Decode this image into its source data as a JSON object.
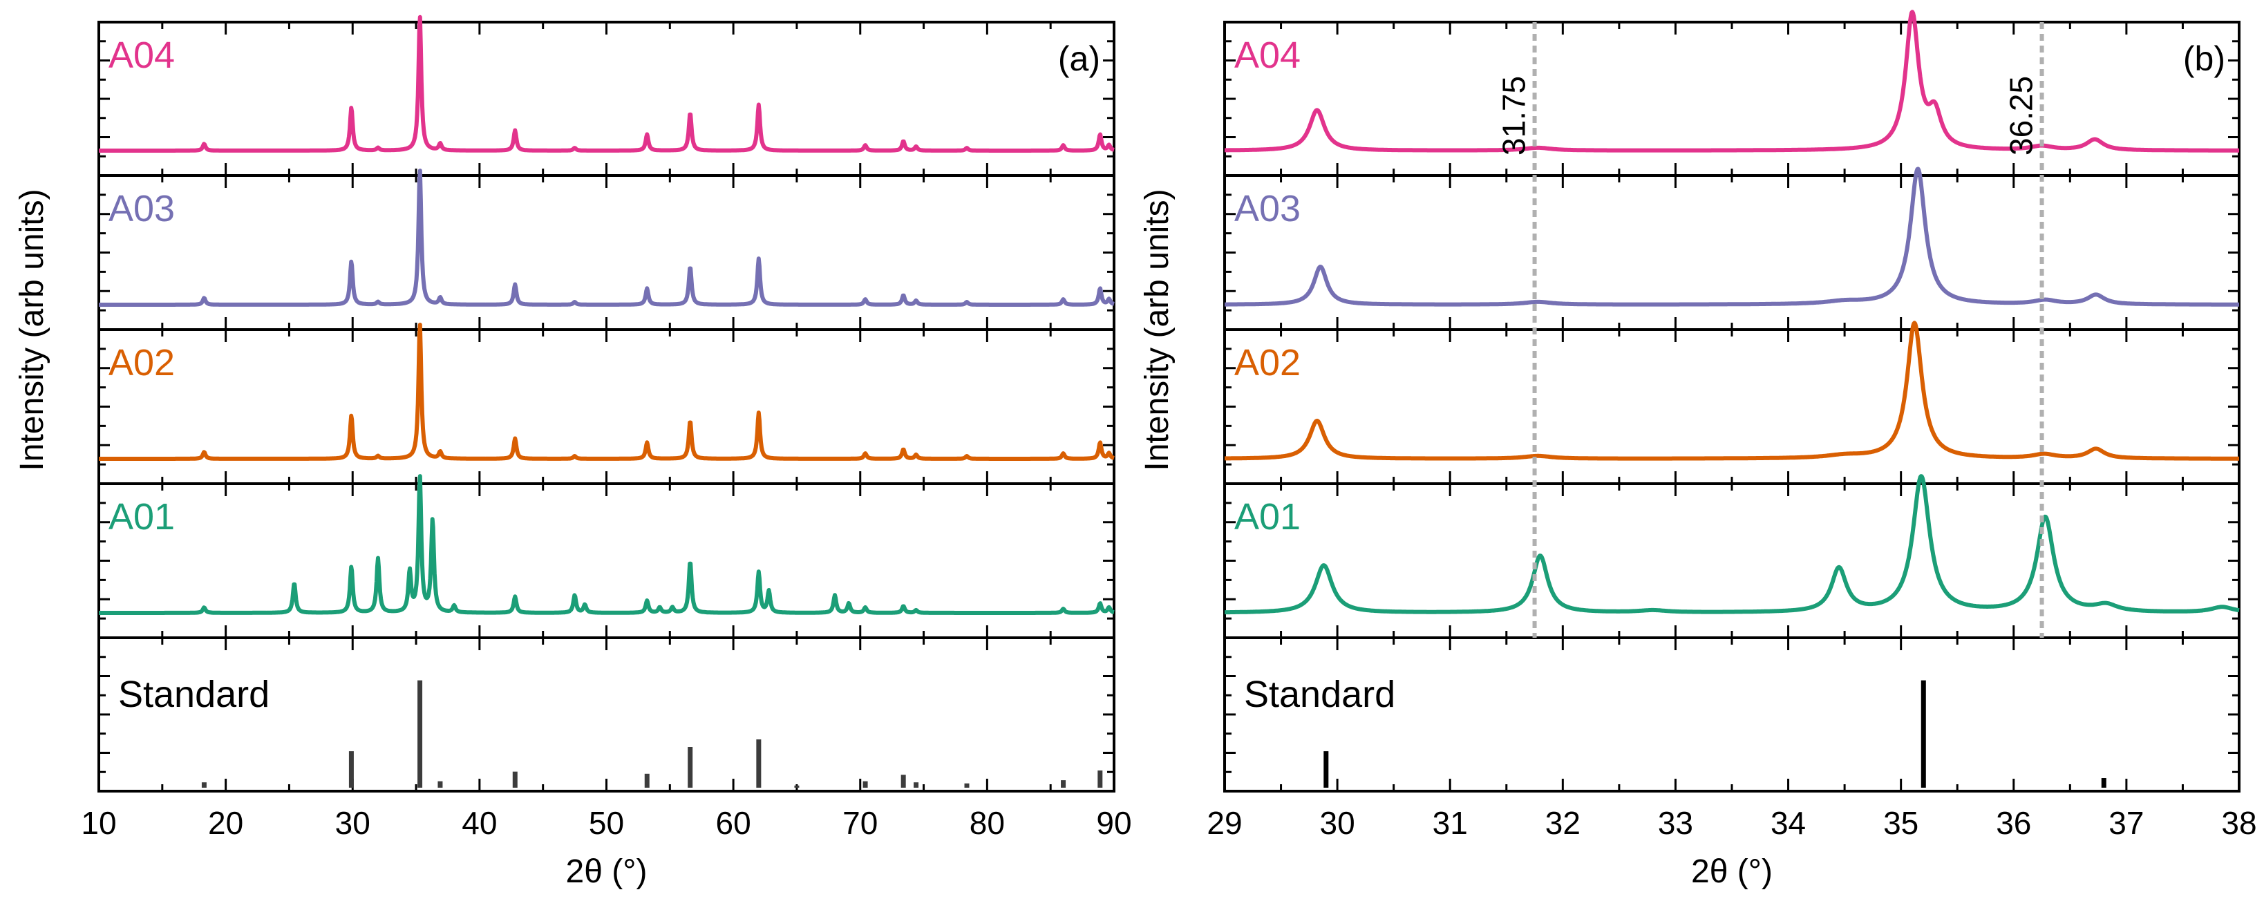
{
  "chart_data": [
    {
      "type": "line",
      "panel": "(a)",
      "xlabel": "2θ (°)",
      "ylabel": "Intensity (arb units)",
      "xlim": [
        10,
        90
      ],
      "xticks": [
        10,
        20,
        30,
        40,
        50,
        60,
        70,
        80,
        90
      ],
      "series": [
        {
          "name": "A04",
          "color": "#e2338c",
          "peaks": [
            [
              18.3,
              0.05
            ],
            [
              29.9,
              0.32
            ],
            [
              32.0,
              0.02
            ],
            [
              35.3,
              1.0
            ],
            [
              36.9,
              0.05
            ],
            [
              42.8,
              0.15
            ],
            [
              47.5,
              0.02
            ],
            [
              53.2,
              0.12
            ],
            [
              56.6,
              0.28
            ],
            [
              62.0,
              0.34
            ],
            [
              70.4,
              0.04
            ],
            [
              73.4,
              0.07
            ],
            [
              74.4,
              0.03
            ],
            [
              78.4,
              0.02
            ],
            [
              86.0,
              0.04
            ],
            [
              88.9,
              0.12
            ],
            [
              89.6,
              0.04
            ]
          ]
        },
        {
          "name": "A03",
          "color": "#7570b3",
          "peaks": [
            [
              18.3,
              0.05
            ],
            [
              29.9,
              0.32
            ],
            [
              32.0,
              0.02
            ],
            [
              35.3,
              1.0
            ],
            [
              36.9,
              0.05
            ],
            [
              42.8,
              0.15
            ],
            [
              47.5,
              0.02
            ],
            [
              53.2,
              0.12
            ],
            [
              56.6,
              0.28
            ],
            [
              62.0,
              0.34
            ],
            [
              70.4,
              0.04
            ],
            [
              73.4,
              0.07
            ],
            [
              74.4,
              0.03
            ],
            [
              78.4,
              0.02
            ],
            [
              86.0,
              0.04
            ],
            [
              88.9,
              0.12
            ],
            [
              89.6,
              0.04
            ]
          ]
        },
        {
          "name": "A02",
          "color": "#d95f02",
          "peaks": [
            [
              18.3,
              0.05
            ],
            [
              29.9,
              0.32
            ],
            [
              32.0,
              0.02
            ],
            [
              35.3,
              1.0
            ],
            [
              36.9,
              0.05
            ],
            [
              42.8,
              0.15
            ],
            [
              47.5,
              0.02
            ],
            [
              53.2,
              0.12
            ],
            [
              56.6,
              0.28
            ],
            [
              62.0,
              0.34
            ],
            [
              70.4,
              0.04
            ],
            [
              73.4,
              0.07
            ],
            [
              74.4,
              0.03
            ],
            [
              78.4,
              0.02
            ],
            [
              86.0,
              0.04
            ],
            [
              88.9,
              0.12
            ],
            [
              89.6,
              0.04
            ]
          ]
        },
        {
          "name": "A01",
          "color": "#1b9e77",
          "peaks": [
            [
              18.3,
              0.04
            ],
            [
              25.4,
              0.22
            ],
            [
              29.9,
              0.34
            ],
            [
              32.0,
              0.4
            ],
            [
              34.5,
              0.3
            ],
            [
              35.3,
              1.0
            ],
            [
              36.3,
              0.68
            ],
            [
              38.0,
              0.05
            ],
            [
              42.8,
              0.12
            ],
            [
              47.5,
              0.13
            ],
            [
              48.3,
              0.06
            ],
            [
              53.2,
              0.09
            ],
            [
              54.2,
              0.04
            ],
            [
              55.2,
              0.04
            ],
            [
              56.6,
              0.38
            ],
            [
              62.0,
              0.3
            ],
            [
              62.8,
              0.16
            ],
            [
              68.0,
              0.13
            ],
            [
              69.1,
              0.07
            ],
            [
              70.4,
              0.04
            ],
            [
              73.4,
              0.05
            ],
            [
              74.4,
              0.02
            ],
            [
              86.0,
              0.03
            ],
            [
              88.9,
              0.07
            ],
            [
              89.6,
              0.04
            ]
          ]
        }
      ],
      "standard": {
        "name": "Standard",
        "color": "#3c3c3c",
        "lines": [
          [
            18.3,
            0.05
          ],
          [
            29.9,
            0.34
          ],
          [
            35.3,
            1.0
          ],
          [
            36.9,
            0.06
          ],
          [
            42.8,
            0.15
          ],
          [
            53.2,
            0.13
          ],
          [
            56.6,
            0.38
          ],
          [
            62.0,
            0.45
          ],
          [
            65.0,
            0.02
          ],
          [
            70.4,
            0.06
          ],
          [
            73.4,
            0.12
          ],
          [
            74.4,
            0.05
          ],
          [
            78.4,
            0.04
          ],
          [
            86.0,
            0.07
          ],
          [
            88.9,
            0.16
          ]
        ]
      }
    },
    {
      "type": "line",
      "panel": "(b)",
      "xlabel": "2θ (°)",
      "ylabel": "Intensity (arb units)",
      "xlim": [
        29,
        38
      ],
      "xticks": [
        29,
        30,
        31,
        32,
        33,
        34,
        35,
        36,
        37,
        38
      ],
      "guides": [
        31.75,
        36.25
      ],
      "guide_labels": [
        "31.75",
        "36.25"
      ],
      "series": [
        {
          "name": "A04",
          "color": "#e2338c",
          "peaks": [
            [
              29.82,
              0.3,
              0.08
            ],
            [
              31.78,
              0.02,
              0.15
            ],
            [
              35.1,
              1.0,
              0.07
            ],
            [
              35.3,
              0.25,
              0.07
            ],
            [
              36.25,
              0.03,
              0.12
            ],
            [
              36.72,
              0.08,
              0.09
            ]
          ]
        },
        {
          "name": "A03",
          "color": "#7570b3",
          "peaks": [
            [
              29.85,
              0.28,
              0.07
            ],
            [
              31.78,
              0.02,
              0.15
            ],
            [
              34.5,
              0.02,
              0.2
            ],
            [
              35.15,
              1.0,
              0.08
            ],
            [
              36.28,
              0.03,
              0.12
            ],
            [
              36.73,
              0.07,
              0.09
            ]
          ]
        },
        {
          "name": "A02",
          "color": "#d95f02",
          "peaks": [
            [
              29.82,
              0.28,
              0.08
            ],
            [
              31.78,
              0.02,
              0.15
            ],
            [
              34.5,
              0.02,
              0.2
            ],
            [
              35.12,
              1.0,
              0.08
            ],
            [
              36.27,
              0.03,
              0.12
            ],
            [
              36.73,
              0.07,
              0.09
            ]
          ]
        },
        {
          "name": "A01",
          "color": "#1b9e77",
          "peaks": [
            [
              29.88,
              0.35,
              0.09
            ],
            [
              31.8,
              0.42,
              0.08
            ],
            [
              32.8,
              0.015,
              0.15
            ],
            [
              34.45,
              0.32,
              0.08
            ],
            [
              35.18,
              1.0,
              0.09
            ],
            [
              36.28,
              0.7,
              0.09
            ],
            [
              36.82,
              0.05,
              0.12
            ],
            [
              37.85,
              0.04,
              0.12
            ]
          ]
        }
      ],
      "standard": {
        "name": "Standard",
        "color": "#000000",
        "lines": [
          [
            29.9,
            0.34
          ],
          [
            35.2,
            1.0
          ],
          [
            36.8,
            0.09
          ]
        ]
      }
    }
  ]
}
